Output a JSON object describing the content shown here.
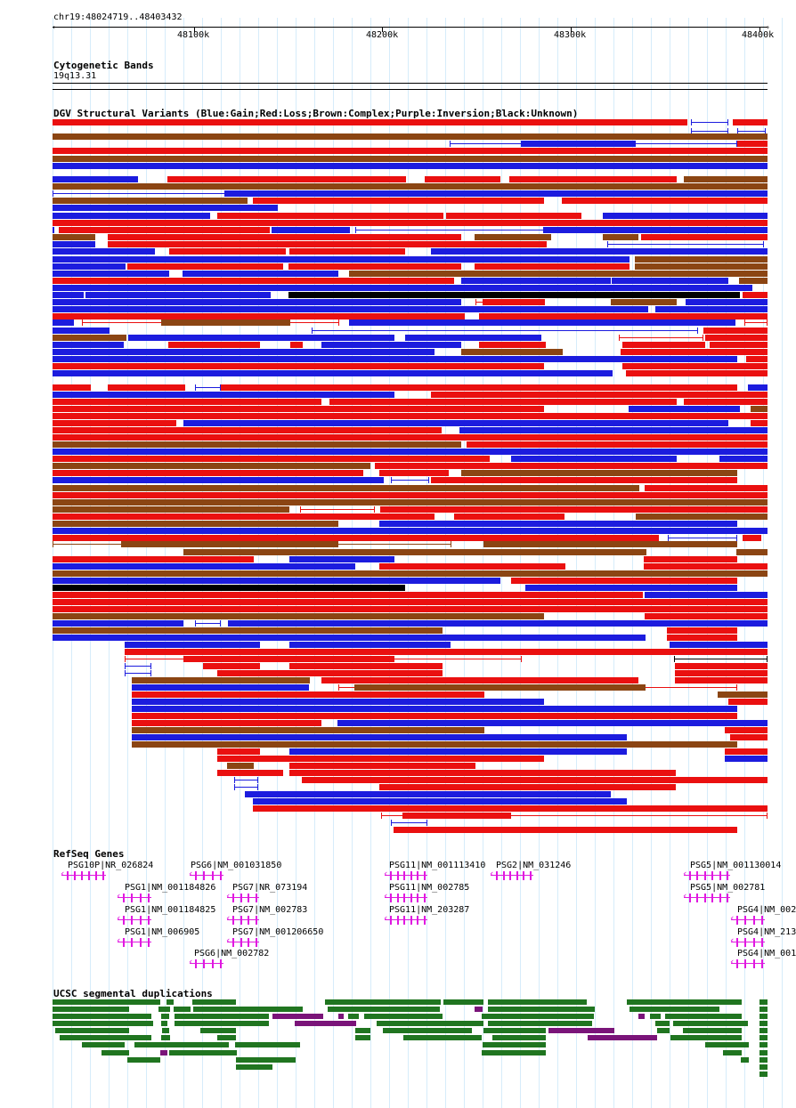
{
  "ruler": {
    "position_label": "chr19:48024719..48403432",
    "ticks": [
      "48100k",
      "48200k",
      "48300k",
      "48400k"
    ]
  },
  "cytoband": {
    "title": "Cytogenetic Bands",
    "band": "19q13.31"
  },
  "dgv": {
    "title": "DGV Structural Variants (Blue:Gain;Red:Loss;Brown:Complex;Purple:Inversion;Black:Unknown)",
    "colors": {
      "gain": "#1c1cde",
      "loss": "#ea1010",
      "complex": "#8b4513",
      "inversion": "#800080",
      "unknown": "#000000"
    }
  },
  "refseq": {
    "title": "RefSeq Genes",
    "color": "#e018e0",
    "genes": [
      "PSG10P|NR_026824",
      "PSG6|NM_001031850",
      "PSG11|NM_001113410",
      "PSG2|NM_031246",
      "PSG5|NM_001130014",
      "PSG1|NM_001184826",
      "PSG7|NR_073194",
      "PSG11|NM_002785",
      "PSG5|NM_002781",
      "PSG1|NM_001184825",
      "PSG7|NM_002783",
      "PSG11|NM_203287",
      "PSG4|NM_002",
      "PSG1|NM_006905",
      "PSG7|NM_001206650",
      "PSG4|NM_213",
      "PSG6|NM_002782",
      "PSG4|NM_001"
    ]
  },
  "segdup": {
    "title": "UCSC segmental duplications",
    "colors": {
      "green": "#207520",
      "purple": "#7a1479"
    }
  }
}
